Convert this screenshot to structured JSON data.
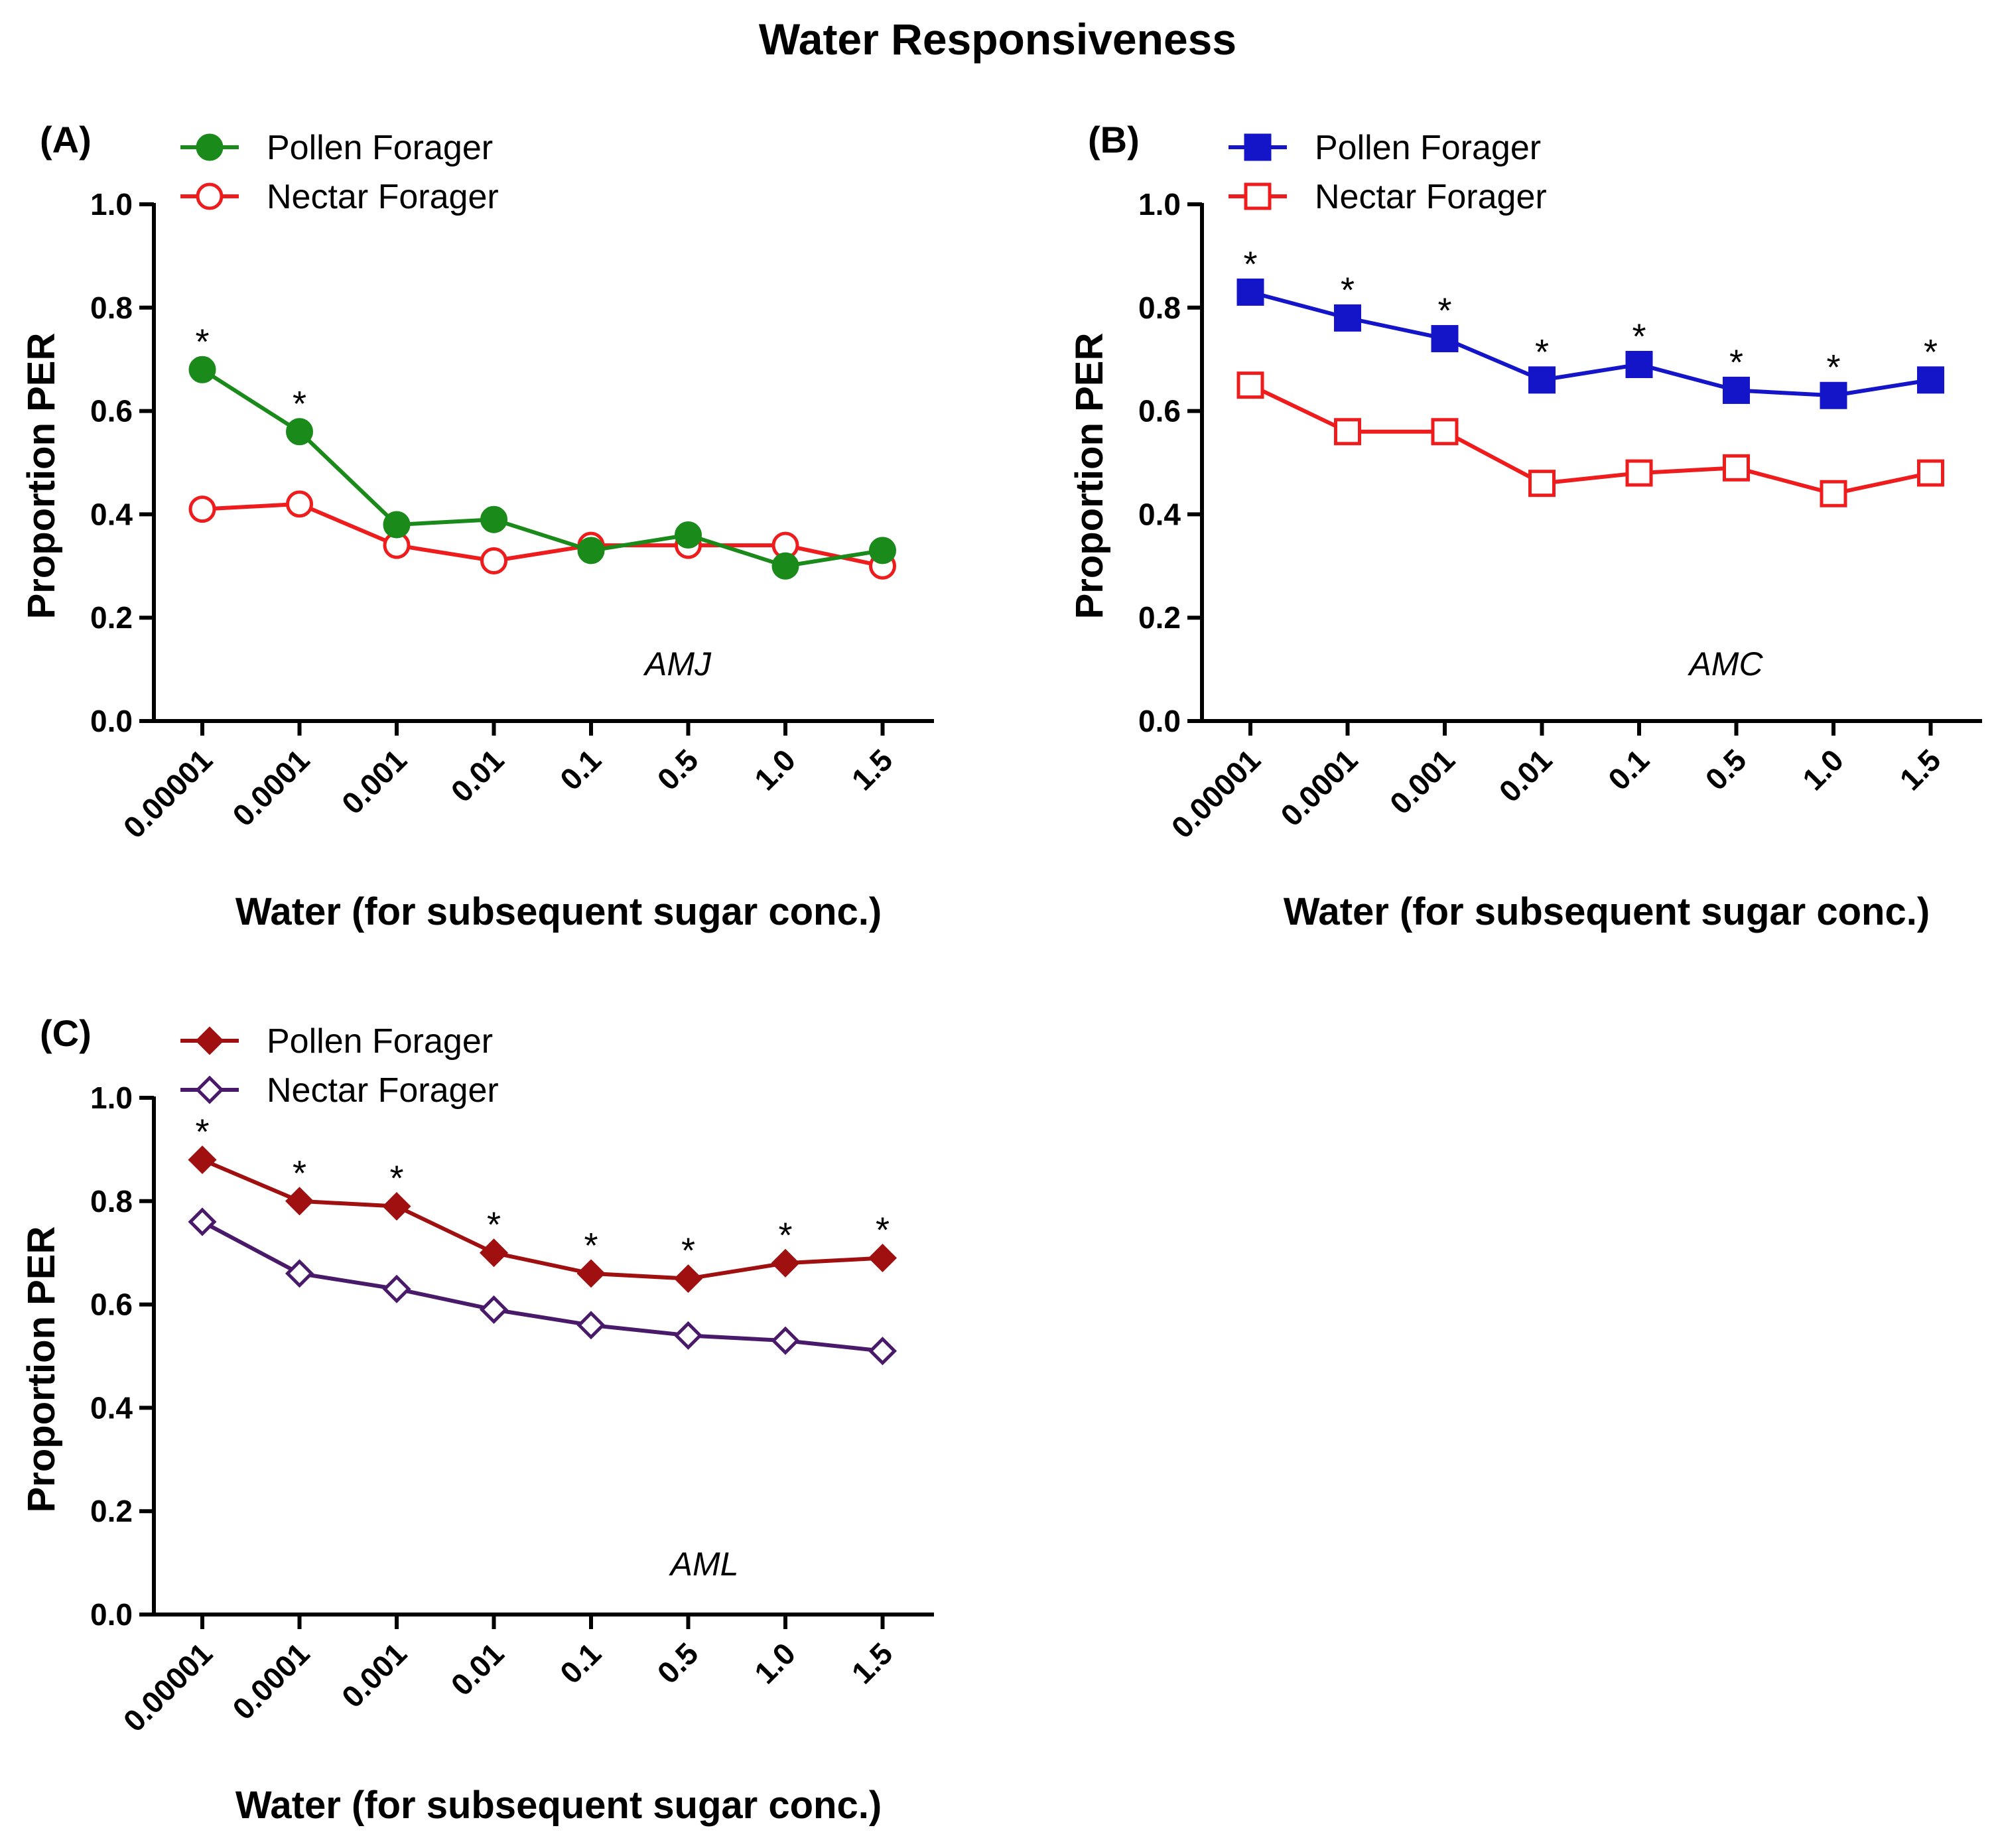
{
  "title": "Water Responsiveness",
  "chart_data": [
    {
      "type": "line",
      "panel": "(A)",
      "annotation": "AMJ",
      "xlabel": "Water (for subsequent sugar conc.)",
      "ylabel": "Proportion PER",
      "categories": [
        "0.00001",
        "0.0001",
        "0.001",
        "0.01",
        "0.1",
        "0.5",
        "1.0",
        "1.5"
      ],
      "ylim": [
        0,
        1.0
      ],
      "yticks": [
        "0.0",
        "0.2",
        "0.4",
        "0.6",
        "0.8",
        "1.0"
      ],
      "legend_position": "top-left",
      "series": [
        {
          "name": "Pollen Forager",
          "color": "#1a8a1a",
          "marker": "circle",
          "filled": true,
          "values": [
            0.68,
            0.56,
            0.38,
            0.39,
            0.33,
            0.36,
            0.3,
            0.33
          ],
          "significant": [
            true,
            true,
            false,
            false,
            false,
            false,
            false,
            false
          ]
        },
        {
          "name": "Nectar Forager",
          "color": "#ee1c1c",
          "marker": "circle",
          "filled": false,
          "values": [
            0.41,
            0.42,
            0.34,
            0.31,
            0.34,
            0.34,
            0.34,
            0.3
          ]
        }
      ],
      "significance_marker": "*"
    },
    {
      "type": "line",
      "panel": "(B)",
      "annotation": "AMC",
      "xlabel": "Water (for subsequent sugar conc.)",
      "ylabel": "Proportion PER",
      "categories": [
        "0.00001",
        "0.0001",
        "0.001",
        "0.01",
        "0.1",
        "0.5",
        "1.0",
        "1.5"
      ],
      "ylim": [
        0,
        1.0
      ],
      "yticks": [
        "0.0",
        "0.2",
        "0.4",
        "0.6",
        "0.8",
        "1.0"
      ],
      "legend_position": "top-left",
      "series": [
        {
          "name": "Pollen Forager",
          "color": "#1414c8",
          "marker": "square",
          "filled": true,
          "values": [
            0.83,
            0.78,
            0.74,
            0.66,
            0.69,
            0.64,
            0.63,
            0.66
          ],
          "significant": [
            true,
            true,
            true,
            true,
            true,
            true,
            true,
            true
          ]
        },
        {
          "name": "Nectar Forager",
          "color": "#ee1c1c",
          "marker": "square",
          "filled": false,
          "values": [
            0.65,
            0.56,
            0.56,
            0.46,
            0.48,
            0.49,
            0.44,
            0.48
          ]
        }
      ],
      "significance_marker": "*"
    },
    {
      "type": "line",
      "panel": "(C)",
      "annotation": "AML",
      "xlabel": "Water (for subsequent sugar conc.)",
      "ylabel": "Proportion PER",
      "categories": [
        "0.00001",
        "0.0001",
        "0.001",
        "0.01",
        "0.1",
        "0.5",
        "1.0",
        "1.5"
      ],
      "ylim": [
        0,
        1.0
      ],
      "yticks": [
        "0.0",
        "0.2",
        "0.4",
        "0.6",
        "0.8",
        "1.0"
      ],
      "legend_position": "top-left",
      "series": [
        {
          "name": "Pollen Forager",
          "color": "#a01010",
          "marker": "diamond",
          "filled": true,
          "values": [
            0.88,
            0.8,
            0.79,
            0.7,
            0.66,
            0.65,
            0.68,
            0.69
          ],
          "significant": [
            true,
            true,
            true,
            true,
            true,
            true,
            true,
            true
          ]
        },
        {
          "name": "Nectar Forager",
          "color": "#4a1a6a",
          "marker": "diamond",
          "filled": false,
          "values": [
            0.76,
            0.66,
            0.63,
            0.59,
            0.56,
            0.54,
            0.53,
            0.51
          ]
        }
      ],
      "significance_marker": "*"
    }
  ]
}
